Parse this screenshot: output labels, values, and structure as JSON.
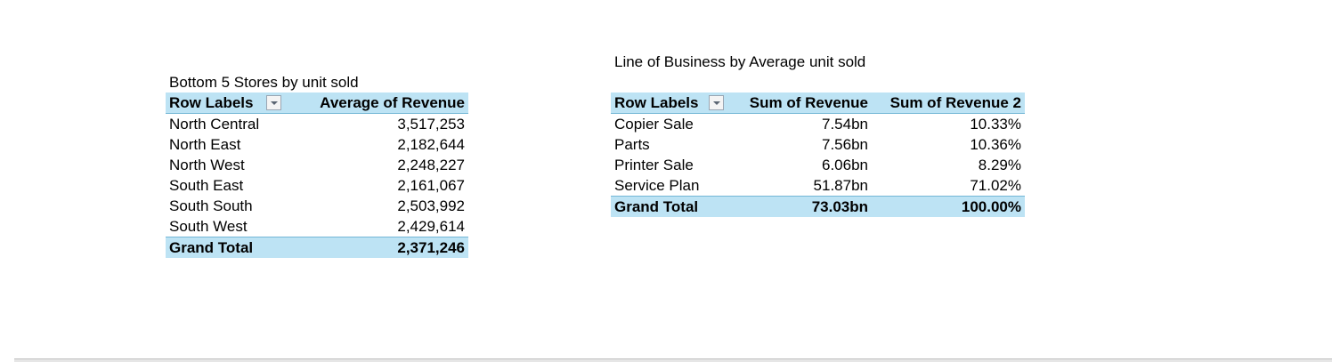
{
  "pivot_left": {
    "caption": "Bottom 5 Stores by unit sold",
    "headers": {
      "row_labels": "Row Labels",
      "value": "Average of Revenue"
    },
    "rows": [
      {
        "label": "North Central",
        "value": "3,517,253"
      },
      {
        "label": "North East",
        "value": "2,182,644"
      },
      {
        "label": "North West",
        "value": "2,248,227"
      },
      {
        "label": "South East",
        "value": "2,161,067"
      },
      {
        "label": "South South",
        "value": "2,503,992"
      },
      {
        "label": "South West",
        "value": "2,429,614"
      }
    ],
    "total": {
      "label": "Grand Total",
      "value": "2,371,246"
    }
  },
  "pivot_right": {
    "caption": "Line of Business by Average unit sold",
    "headers": {
      "row_labels": "Row Labels",
      "value1": "Sum of Revenue",
      "value2": "Sum of Revenue 2"
    },
    "rows": [
      {
        "label": "Copier Sale",
        "value1": "7.54bn",
        "value2": "10.33%"
      },
      {
        "label": "Parts",
        "value1": "7.56bn",
        "value2": "10.36%"
      },
      {
        "label": "Printer Sale",
        "value1": "6.06bn",
        "value2": "8.29%"
      },
      {
        "label": "Service Plan",
        "value1": "51.87bn",
        "value2": "71.02%"
      }
    ],
    "total": {
      "label": "Grand Total",
      "value1": "73.03bn",
      "value2": "100.00%"
    }
  },
  "colors": {
    "header_fill": "#bde3f4",
    "header_border": "#74b7d6"
  },
  "icons": {
    "filter_dropdown": "chevron-down-icon"
  }
}
